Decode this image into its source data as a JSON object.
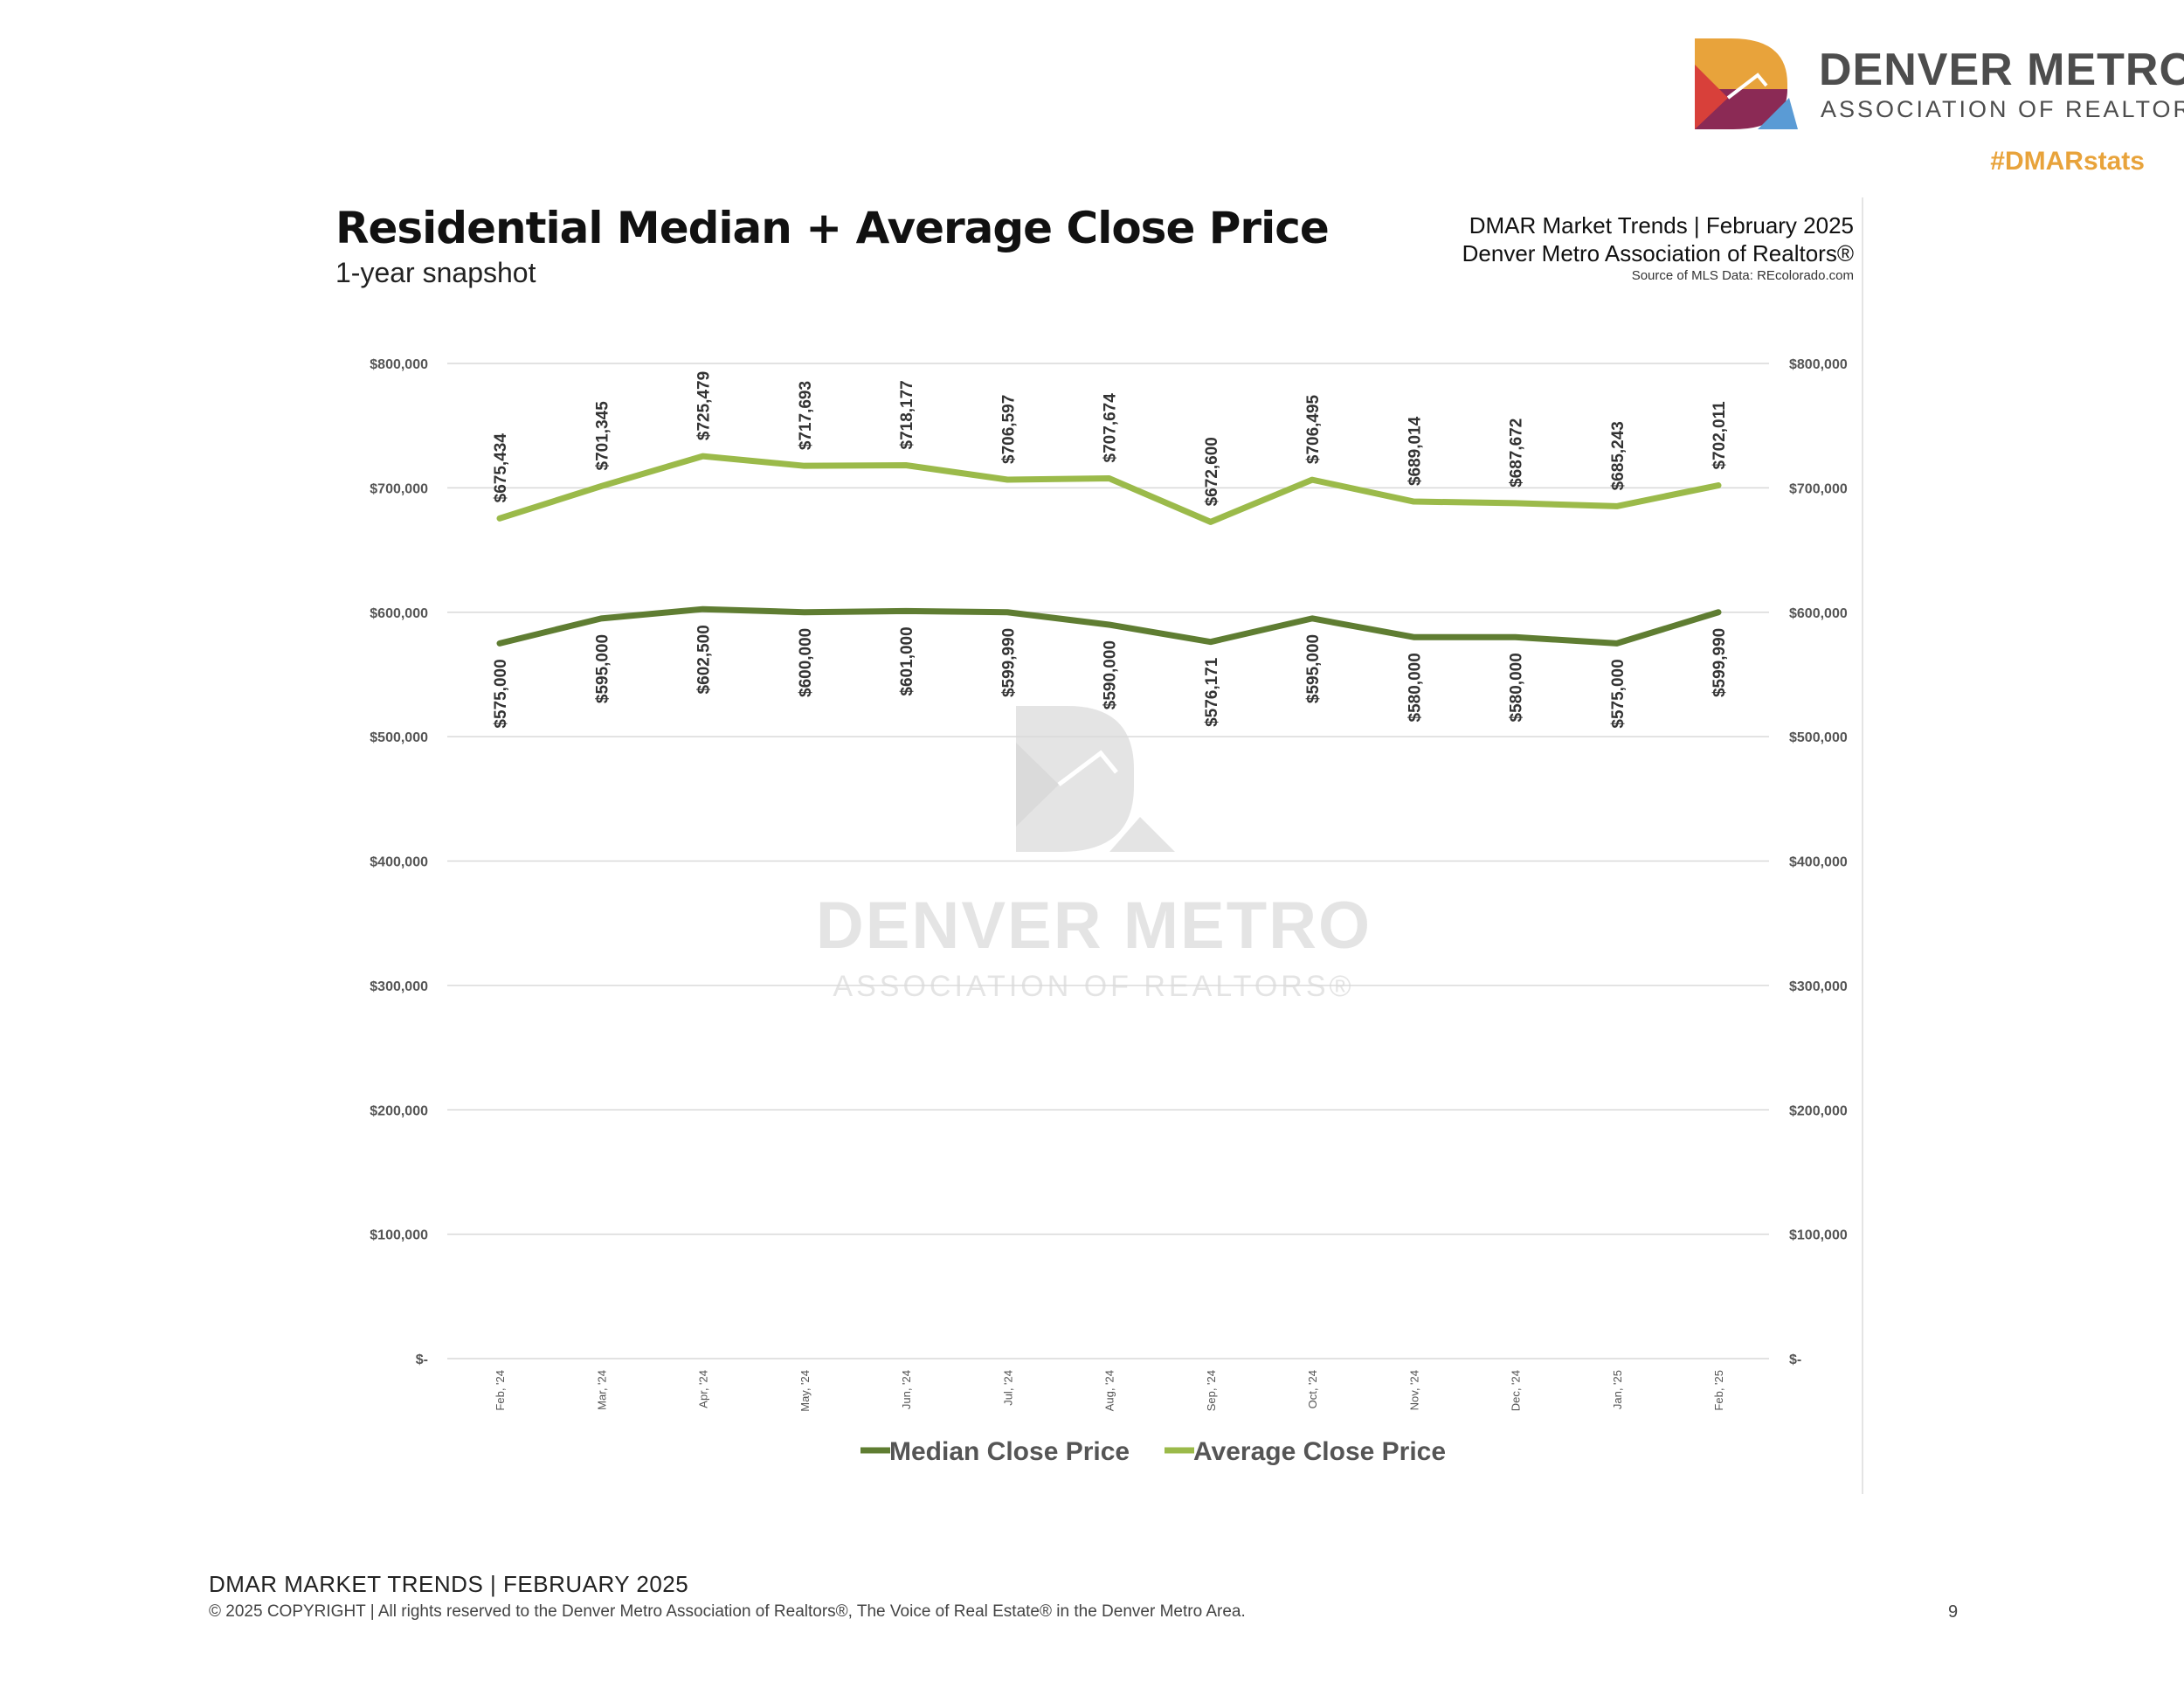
{
  "brand": {
    "name": "DENVER METRO",
    "sub": "ASSOCIATION OF REALTORS",
    "reg": "®",
    "hashtag": "#DMARstats",
    "colors": {
      "orange": "#e8a33b",
      "maroon": "#8b2a55",
      "red": "#d8403a",
      "blue": "#5a9bd5"
    }
  },
  "header": {
    "title": "Residential Median + Average Close Price",
    "subtitle": "1-year snapshot",
    "meta_line1": "DMAR Market Trends | February 2025",
    "meta_line2": "Denver Metro Association of Realtors®",
    "meta_line3": "Source of MLS Data: REcolorado.com"
  },
  "watermark": {
    "name": "DENVER METRO",
    "sub": "ASSOCIATION OF REALTORS®"
  },
  "chart_data": {
    "type": "line",
    "categories": [
      "Feb, '24",
      "Mar, '24",
      "Apr, '24",
      "May, '24",
      "Jun, '24",
      "Jul, '24",
      "Aug, '24",
      "Sep, '24",
      "Oct, '24",
      "Nov, '24",
      "Dec, '24",
      "Jan, '25",
      "Feb, '25"
    ],
    "series": [
      {
        "name": "Median Close Price",
        "color": "#5f7d32",
        "values": [
          575000,
          595000,
          602500,
          600000,
          601000,
          599990,
          590000,
          576171,
          595000,
          580000,
          580000,
          575000,
          599990
        ],
        "labels": [
          "$575,000",
          "$595,000",
          "$602,500",
          "$600,000",
          "$601,000",
          "$599,990",
          "$590,000",
          "$576,171",
          "$595,000",
          "$580,000",
          "$580,000",
          "$575,000",
          "$599,990"
        ],
        "label_position": "below"
      },
      {
        "name": "Average Close Price",
        "color": "#9bba4a",
        "values": [
          675434,
          701345,
          725479,
          717693,
          718177,
          706597,
          707674,
          672600,
          706495,
          689014,
          687672,
          685243,
          702011
        ],
        "labels": [
          "$675,434",
          "$701,345",
          "$725,479",
          "$717,693",
          "$718,177",
          "$706,597",
          "$707,674",
          "$672,600",
          "$706,495",
          "$689,014",
          "$687,672",
          "$685,243",
          "$702,011"
        ],
        "label_position": "above"
      }
    ],
    "ylim": [
      0,
      800000
    ],
    "yticks": [
      0,
      100000,
      200000,
      300000,
      400000,
      500000,
      600000,
      700000,
      800000
    ],
    "ytick_labels": [
      "$-",
      "$100,000",
      "$200,000",
      "$300,000",
      "$400,000",
      "$500,000",
      "$600,000",
      "$700,000",
      "$800,000"
    ],
    "secondary_axis": true,
    "grid": true,
    "legend": "bottom-center"
  },
  "footer": {
    "line1": "DMAR MARKET TRENDS | FEBRUARY 2025",
    "line2": "© 2025 COPYRIGHT | All rights reserved to the Denver Metro Association of Realtors®, The Voice of Real Estate® in the Denver Metro Area.",
    "page": "9"
  }
}
